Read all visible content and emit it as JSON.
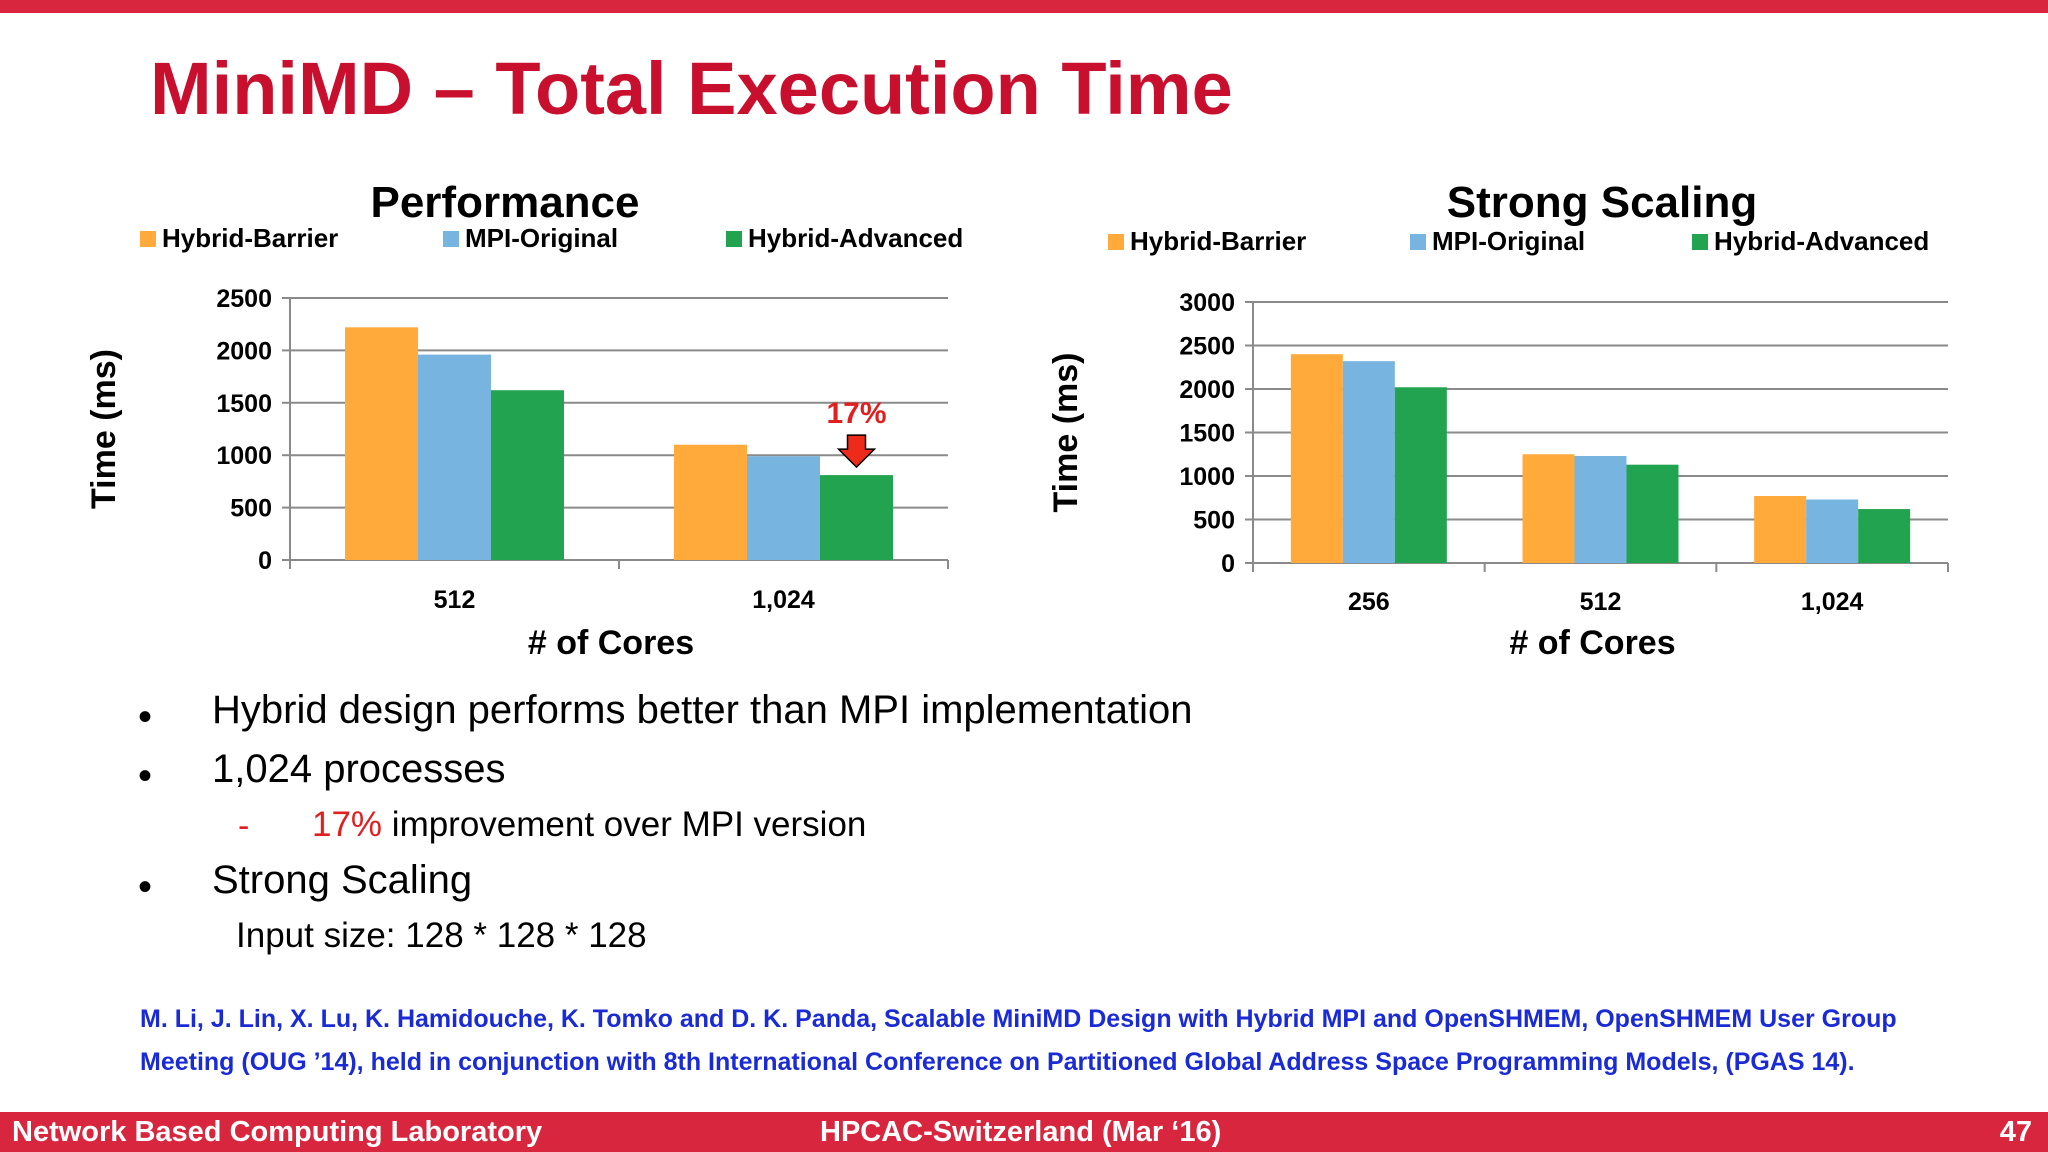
{
  "colors": {
    "accent": "#d7263d",
    "title": "#c8102e",
    "hybrid_barrier": "#ffaa3b",
    "mpi_original": "#78b4e0",
    "hybrid_advanced": "#22a34f",
    "reference": "#1a2bd6",
    "highlight": "#e02020"
  },
  "title": "MiniMD – Total Execution Time",
  "chart_data": [
    {
      "type": "bar",
      "title": "Performance",
      "xlabel": "# of Cores",
      "ylabel": "Time (ms)",
      "categories": [
        "512",
        "1,024"
      ],
      "series": [
        {
          "name": "Hybrid-Barrier",
          "values": [
            2220,
            1100
          ]
        },
        {
          "name": "MPI-Original",
          "values": [
            1960,
            990
          ]
        },
        {
          "name": "Hybrid-Advanced",
          "values": [
            1620,
            810
          ]
        }
      ],
      "ylim": [
        0,
        2500
      ],
      "yticks": [
        0,
        500,
        1000,
        1500,
        2000,
        2500
      ],
      "grid": true,
      "legend": "top",
      "annotation": {
        "text": "17%",
        "category": "1,024",
        "series": "Hybrid-Advanced",
        "marker": "down-arrow"
      }
    },
    {
      "type": "bar",
      "title": "Strong Scaling",
      "xlabel": "# of Cores",
      "ylabel": "Time (ms)",
      "categories": [
        "256",
        "512",
        "1,024"
      ],
      "series": [
        {
          "name": "Hybrid-Barrier",
          "values": [
            2400,
            1250,
            770
          ]
        },
        {
          "name": "MPI-Original",
          "values": [
            2320,
            1230,
            730
          ]
        },
        {
          "name": "Hybrid-Advanced",
          "values": [
            2020,
            1130,
            620
          ]
        }
      ],
      "ylim": [
        0,
        3000
      ],
      "yticks": [
        0,
        500,
        1000,
        1500,
        2000,
        2500,
        3000
      ],
      "grid": true,
      "legend": "top"
    }
  ],
  "bullets": [
    {
      "marker": "•",
      "text": "Hybrid design performs better than MPI implementation"
    },
    {
      "marker": "•",
      "text": "1,024 processes"
    },
    {
      "marker": "-",
      "highlight": "17%",
      "text": " improvement over MPI version"
    },
    {
      "marker": "•",
      "text": "Strong Scaling"
    },
    {
      "text": "Input size: 128 * 128 * 128"
    }
  ],
  "reference": [
    "M. Li, J. Lin, X. Lu, K. Hamidouche, K. Tomko and D. K. Panda, Scalable MiniMD Design with Hybrid MPI and OpenSHMEM, OpenSHMEM User Group",
    "Meeting (OUG ’14), held in conjunction with 8th International Conference on Partitioned Global Address Space Programming Models, (PGAS 14)."
  ],
  "footer": {
    "left": "Network Based Computing Laboratory",
    "center": "HPCAC-Switzerland (Mar ‘16)",
    "right": "47"
  }
}
